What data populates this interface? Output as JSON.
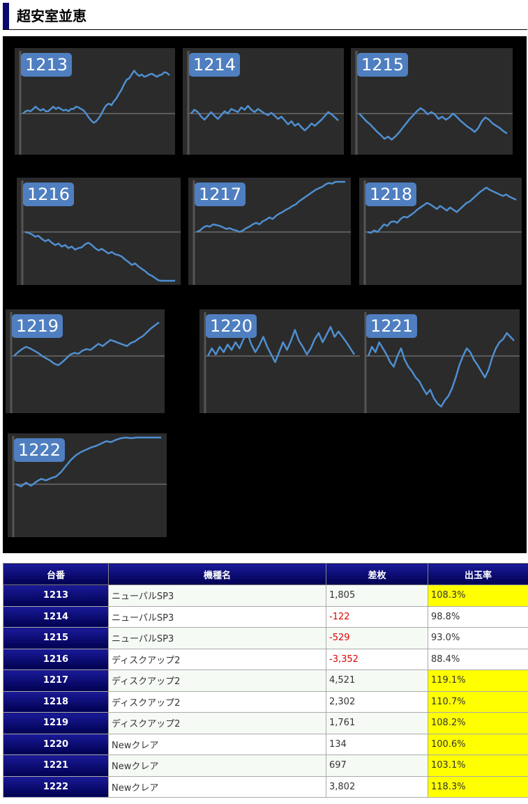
{
  "page": {
    "title": "超安室並恵"
  },
  "table": {
    "headers": [
      "台番",
      "機種名",
      "差枚",
      "出玉率"
    ],
    "rows": [
      {
        "num": "1213",
        "machine": "ニューパルSP3",
        "diff": "1,805",
        "rate": "108.3%",
        "diff_negative": false,
        "rate_highlight": true
      },
      {
        "num": "1214",
        "machine": "ニューパルSP3",
        "diff": "-122",
        "rate": "98.8%",
        "diff_negative": true,
        "rate_highlight": false
      },
      {
        "num": "1215",
        "machine": "ニューパルSP3",
        "diff": "-529",
        "rate": "93.0%",
        "diff_negative": true,
        "rate_highlight": false
      },
      {
        "num": "1216",
        "machine": "ディスクアップ2",
        "diff": "-3,352",
        "rate": "88.4%",
        "diff_negative": true,
        "rate_highlight": false
      },
      {
        "num": "1217",
        "machine": "ディスクアップ2",
        "diff": "4,521",
        "rate": "119.1%",
        "diff_negative": false,
        "rate_highlight": true
      },
      {
        "num": "1218",
        "machine": "ディスクアップ2",
        "diff": "2,302",
        "rate": "110.7%",
        "diff_negative": false,
        "rate_highlight": true
      },
      {
        "num": "1219",
        "machine": "ディスクアップ2",
        "diff": "1,761",
        "rate": "108.2%",
        "diff_negative": false,
        "rate_highlight": true
      },
      {
        "num": "1220",
        "machine": "Newクレア",
        "diff": "134",
        "rate": "100.6%",
        "diff_negative": false,
        "rate_highlight": true
      },
      {
        "num": "1221",
        "machine": "Newクレア",
        "diff": "697",
        "rate": "103.1%",
        "diff_negative": false,
        "rate_highlight": true
      },
      {
        "num": "1222",
        "machine": "Newクレア",
        "diff": "3,802",
        "rate": "118.3%",
        "diff_negative": false,
        "rate_highlight": true
      }
    ]
  },
  "graphs": [
    {
      "label": "1213",
      "trend": [
        0.0,
        0.03,
        0.04,
        0.03,
        0.06,
        0.09,
        0.06,
        0.04,
        0.06,
        0.03,
        0.03,
        0.06,
        0.09,
        0.06,
        0.08,
        0.06,
        0.04,
        0.05,
        0.03,
        0.06,
        0.06,
        0.09,
        0.08,
        0.06,
        0.04,
        0.0,
        -0.05,
        -0.09,
        -0.12,
        -0.1,
        -0.06,
        -0.01,
        0.06,
        0.11,
        0.13,
        0.11,
        0.16,
        0.2,
        0.26,
        0.31,
        0.38,
        0.44,
        0.46,
        0.51,
        0.56,
        0.52,
        0.49,
        0.51,
        0.48,
        0.49,
        0.51,
        0.52,
        0.5,
        0.48,
        0.5,
        0.51,
        0.54,
        0.53,
        0.5
      ]
    },
    {
      "label": "1214",
      "trend": [
        0.0,
        0.05,
        0.02,
        -0.04,
        -0.08,
        -0.03,
        0.02,
        -0.03,
        -0.07,
        -0.02,
        0.03,
        0.0,
        0.06,
        0.04,
        0.02,
        0.08,
        0.05,
        0.1,
        0.05,
        0.02,
        0.06,
        0.03,
        0.0,
        -0.02,
        0.01,
        -0.03,
        -0.07,
        -0.04,
        -0.09,
        -0.14,
        -0.1,
        -0.16,
        -0.13,
        -0.18,
        -0.22,
        -0.18,
        -0.13,
        -0.16,
        -0.12,
        -0.08,
        -0.03,
        0.02,
        -0.01,
        -0.05,
        -0.09
      ]
    },
    {
      "label": "1215",
      "trend": [
        0.0,
        -0.05,
        -0.1,
        -0.14,
        -0.19,
        -0.24,
        -0.28,
        -0.33,
        -0.3,
        -0.34,
        -0.3,
        -0.25,
        -0.19,
        -0.13,
        -0.07,
        -0.02,
        0.03,
        0.07,
        0.04,
        -0.01,
        0.02,
        -0.01,
        -0.07,
        -0.04,
        -0.08,
        -0.05,
        0.0,
        -0.04,
        -0.09,
        -0.13,
        -0.17,
        -0.2,
        -0.24,
        -0.19,
        -0.1,
        -0.05,
        -0.08,
        -0.13,
        -0.16,
        -0.19,
        -0.23,
        -0.26
      ]
    },
    {
      "label": "1216",
      "trend": [
        0.0,
        -0.01,
        -0.03,
        -0.06,
        -0.05,
        -0.09,
        -0.12,
        -0.1,
        -0.14,
        -0.17,
        -0.15,
        -0.19,
        -0.17,
        -0.21,
        -0.19,
        -0.23,
        -0.21,
        -0.2,
        -0.16,
        -0.14,
        -0.17,
        -0.21,
        -0.24,
        -0.22,
        -0.25,
        -0.28,
        -0.26,
        -0.29,
        -0.3,
        -0.32,
        -0.36,
        -0.39,
        -0.43,
        -0.41,
        -0.45,
        -0.48,
        -0.51,
        -0.55,
        -0.57,
        -0.6,
        -0.63,
        -0.68,
        -0.71,
        -0.68,
        -0.65,
        -0.66
      ]
    },
    {
      "label": "1217",
      "trend": [
        0.0,
        0.02,
        0.06,
        0.08,
        0.07,
        0.1,
        0.09,
        0.08,
        0.06,
        0.04,
        0.05,
        0.03,
        0.02,
        0.0,
        0.02,
        0.05,
        0.07,
        0.1,
        0.12,
        0.1,
        0.14,
        0.16,
        0.19,
        0.17,
        0.21,
        0.24,
        0.26,
        0.29,
        0.31,
        0.34,
        0.36,
        0.4,
        0.43,
        0.46,
        0.49,
        0.52,
        0.55,
        0.57,
        0.59,
        0.62,
        0.64,
        0.63,
        0.66,
        0.68,
        0.71,
        0.73
      ]
    },
    {
      "label": "1218",
      "trend": [
        0.0,
        -0.01,
        0.02,
        0.0,
        0.05,
        0.1,
        0.08,
        0.13,
        0.14,
        0.12,
        0.17,
        0.2,
        0.19,
        0.22,
        0.25,
        0.29,
        0.32,
        0.35,
        0.38,
        0.36,
        0.33,
        0.3,
        0.34,
        0.31,
        0.28,
        0.32,
        0.29,
        0.26,
        0.3,
        0.34,
        0.38,
        0.4,
        0.44,
        0.48,
        0.52,
        0.55,
        0.58,
        0.55,
        0.53,
        0.51,
        0.49,
        0.47,
        0.49,
        0.46,
        0.44,
        0.42
      ]
    },
    {
      "label": "1219",
      "trend": [
        0.0,
        0.05,
        0.09,
        0.12,
        0.1,
        0.07,
        0.04,
        0.0,
        -0.03,
        -0.06,
        -0.1,
        -0.12,
        -0.08,
        -0.03,
        0.02,
        0.04,
        0.03,
        0.07,
        0.09,
        0.08,
        0.12,
        0.16,
        0.13,
        0.17,
        0.21,
        0.19,
        0.17,
        0.15,
        0.13,
        0.17,
        0.19,
        0.23,
        0.26,
        0.31,
        0.36,
        0.4,
        0.44
      ]
    },
    {
      "label": "1220",
      "trend": [
        0.0,
        0.1,
        0.02,
        0.12,
        0.05,
        0.15,
        0.08,
        0.18,
        0.1,
        0.22,
        0.3,
        0.15,
        0.05,
        0.14,
        0.25,
        0.12,
        0.02,
        -0.08,
        0.05,
        0.18,
        0.08,
        0.2,
        0.34,
        0.2,
        0.12,
        0.02,
        0.1,
        0.22,
        0.3,
        0.18,
        0.28,
        0.38,
        0.25,
        0.32,
        0.25,
        0.18,
        0.1,
        0.02
      ]
    },
    {
      "label": "1221",
      "trend": [
        0.0,
        0.12,
        0.05,
        0.18,
        0.1,
        0.02,
        -0.08,
        -0.14,
        0.0,
        0.1,
        -0.05,
        -0.14,
        -0.2,
        -0.28,
        -0.33,
        -0.42,
        -0.5,
        -0.44,
        -0.55,
        -0.62,
        -0.66,
        -0.58,
        -0.52,
        -0.42,
        -0.28,
        -0.12,
        0.0,
        0.1,
        0.05,
        -0.05,
        -0.12,
        -0.2,
        -0.28,
        -0.18,
        -0.02,
        0.1,
        0.18,
        0.22,
        0.3,
        0.25,
        0.2
      ]
    },
    {
      "label": "1222",
      "trend": [
        0.0,
        -0.03,
        0.02,
        -0.02,
        0.03,
        0.07,
        0.05,
        0.08,
        0.1,
        0.16,
        0.24,
        0.32,
        0.38,
        0.42,
        0.45,
        0.48,
        0.5,
        0.53,
        0.56,
        0.55,
        0.58,
        0.6,
        0.61,
        0.6,
        0.62,
        0.63,
        0.63,
        0.64,
        0.62,
        0.65
      ]
    }
  ],
  "colors": {
    "line": "#4f8fd0",
    "baseline": "#6a6a6a",
    "axis": "#555555",
    "highlight": "#ffff00",
    "negative": "#e00000"
  }
}
